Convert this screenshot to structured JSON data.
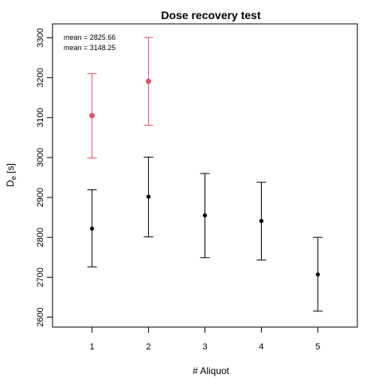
{
  "chart_data": {
    "type": "scatter",
    "title": "Dose recovery test",
    "xlabel": "# Aliquot",
    "ylabel_main": "D",
    "ylabel_sub": "e",
    "ylabel_unit": " [s]",
    "xlim": [
      0.3,
      5.7
    ],
    "ylim": [
      2575,
      3335
    ],
    "x_ticks": [
      1,
      2,
      3,
      4,
      5
    ],
    "y_ticks": [
      2600,
      2700,
      2800,
      2900,
      3000,
      3100,
      3200,
      3300
    ],
    "series": [
      {
        "color": "#000000",
        "points": [
          {
            "x": 1,
            "y": 2822,
            "low": 2726,
            "high": 2919
          },
          {
            "x": 2,
            "y": 2902,
            "low": 2801,
            "high": 3001
          },
          {
            "x": 3,
            "y": 2855,
            "low": 2749,
            "high": 2960
          },
          {
            "x": 4,
            "y": 2841,
            "low": 2743,
            "high": 2938
          },
          {
            "x": 5,
            "y": 2707,
            "low": 2615,
            "high": 2800
          }
        ]
      },
      {
        "color": "#DF536B",
        "points": [
          {
            "x": 1,
            "y": 3105,
            "low": 2999,
            "high": 3210
          },
          {
            "x": 2,
            "y": 3191,
            "low": 3081,
            "high": 3301
          }
        ]
      }
    ],
    "annotations": [
      "mean = 2825.66",
      "mean = 3148.25"
    ]
  }
}
